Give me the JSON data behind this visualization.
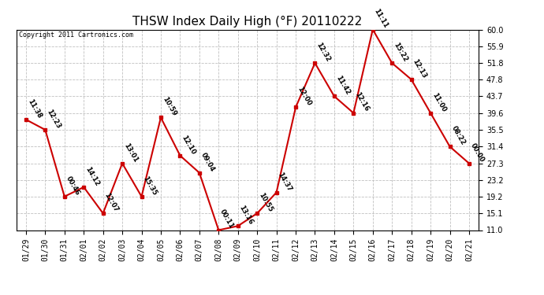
{
  "title": "THSW Index Daily High (°F) 20110222",
  "copyright": "Copyright 2011 Cartronics.com",
  "x_labels": [
    "01/29",
    "01/30",
    "01/31",
    "02/01",
    "02/02",
    "02/03",
    "02/04",
    "02/05",
    "02/06",
    "02/07",
    "02/08",
    "02/09",
    "02/10",
    "02/11",
    "02/12",
    "02/13",
    "02/14",
    "02/15",
    "02/16",
    "02/17",
    "02/18",
    "02/19",
    "02/20",
    "02/21"
  ],
  "y_values": [
    38.0,
    35.5,
    19.2,
    21.5,
    15.1,
    27.3,
    19.2,
    38.5,
    29.2,
    25.0,
    11.0,
    12.0,
    15.1,
    20.2,
    41.0,
    51.8,
    43.7,
    39.6,
    60.0,
    51.8,
    47.8,
    39.6,
    31.4,
    27.3
  ],
  "time_labels": [
    "11:38",
    "12:23",
    "00:46",
    "14:12",
    "12:07",
    "13:01",
    "15:35",
    "10:59",
    "12:10",
    "09:04",
    "00:11",
    "13:16",
    "10:55",
    "14:37",
    "12:00",
    "12:32",
    "11:42",
    "12:16",
    "11:11",
    "15:22",
    "12:13",
    "11:00",
    "08:22",
    "00:00"
  ],
  "ylim": [
    11.0,
    60.0
  ],
  "yticks": [
    11.0,
    15.1,
    19.2,
    23.2,
    27.3,
    31.4,
    35.5,
    39.6,
    43.7,
    47.8,
    51.8,
    55.9,
    60.0
  ],
  "line_color": "#cc0000",
  "marker_color": "#cc0000",
  "bg_color": "#ffffff",
  "plot_bg_color": "#ffffff",
  "grid_color": "#c0c0c0",
  "title_fontsize": 11,
  "copyright_fontsize": 6,
  "label_fontsize": 6,
  "tick_fontsize": 7
}
